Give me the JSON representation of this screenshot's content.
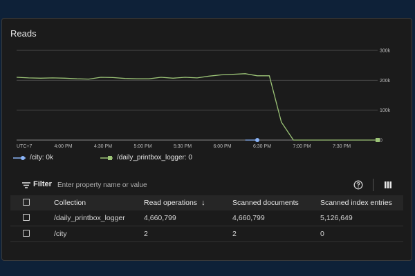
{
  "card": {
    "title": "Reads"
  },
  "chart_data": {
    "type": "line",
    "ylim": [
      0,
      300000
    ],
    "y_ticks": [
      {
        "value": 300000,
        "label": "300k"
      },
      {
        "value": 200000,
        "label": "200k"
      },
      {
        "value": 100000,
        "label": "100k"
      },
      {
        "value": 0,
        "label": "0"
      }
    ],
    "x_ticks": [
      "UTC+7",
      "4:00 PM",
      "4:30 PM",
      "5:00 PM",
      "5:30 PM",
      "6:00 PM",
      "6:30 PM",
      "7:00 PM",
      "7:30 PM"
    ],
    "series": [
      {
        "name": "/daily_printbox_logger",
        "color": "#9cc477",
        "values": [
          210000,
          208000,
          207000,
          208000,
          207000,
          205000,
          204000,
          210000,
          209000,
          206000,
          205000,
          205000,
          210000,
          207000,
          210000,
          208000,
          214000,
          218000,
          220000,
          222000,
          215000,
          215000,
          60000,
          0,
          0,
          0,
          0,
          0,
          0,
          0,
          0
        ]
      },
      {
        "name": "/city",
        "color": "#8ab4f8",
        "values": [
          null,
          null,
          null,
          null,
          null,
          null,
          null,
          null,
          null,
          null,
          null,
          null,
          null,
          null,
          null,
          null,
          null,
          null,
          null,
          0,
          0,
          null,
          null,
          null,
          null,
          null,
          null,
          null,
          null,
          null,
          null
        ]
      }
    ]
  },
  "legend": {
    "city": "/city: 0k",
    "logger": "/daily_printbox_logger: 0"
  },
  "filter": {
    "label": "Filter",
    "placeholder": "Enter property name or value"
  },
  "table": {
    "columns": [
      "Collection",
      "Read operations",
      "Scanned documents",
      "Scanned index entries"
    ],
    "sort_indicator": "↓",
    "rows": [
      {
        "collection": "/daily_printbox_logger",
        "reads": "4,660,799",
        "scanned_docs": "4,660,799",
        "scanned_index": "5,126,649"
      },
      {
        "collection": "/city",
        "reads": "2",
        "scanned_docs": "2",
        "scanned_index": "0"
      }
    ]
  }
}
